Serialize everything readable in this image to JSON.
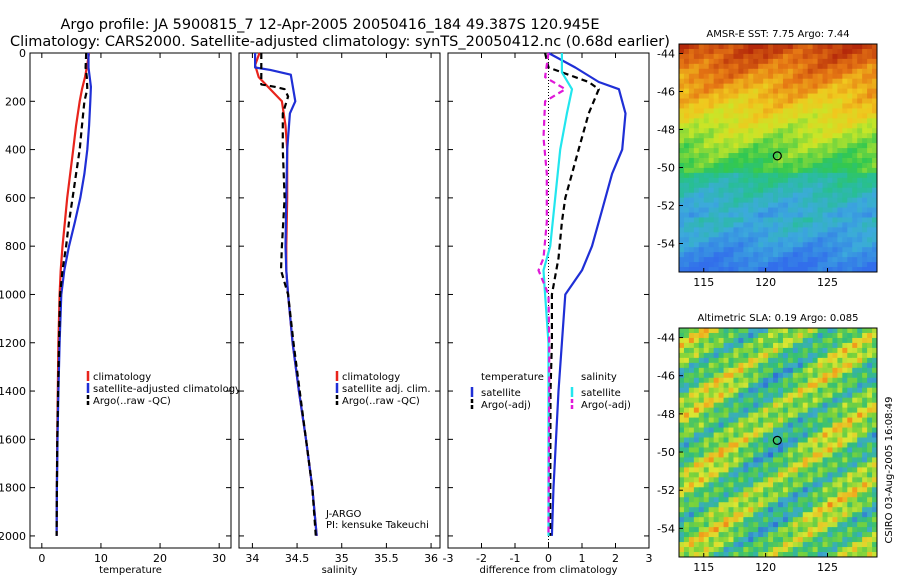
{
  "title_line1": "Argo profile: JA 5900815_7 12-Apr-2005 20050416_184 49.387S 120.945E",
  "title_line2": "Climatology: CARS2000. Satellite-adjusted climatology: synTS_20050412.nc (0.68d earlier)",
  "credit": "CSIRO 03-Aug-2005 16:08:49",
  "colors": {
    "red": "#e8241c",
    "blue": "#1f2fd6",
    "black": "#000000",
    "cyan": "#22e6ee",
    "magenta": "#e019d8"
  },
  "chart_data": [
    {
      "type": "line",
      "xlabel": "temperature",
      "xlim": [
        -2,
        32
      ],
      "ylim": [
        2050,
        0
      ],
      "xticks": [
        0,
        10,
        20,
        30
      ],
      "yticks": [
        0,
        200,
        400,
        600,
        800,
        1000,
        1200,
        1400,
        1600,
        1800,
        2000
      ],
      "legend": "lower-right",
      "series": [
        {
          "name": "climatology",
          "color": "#e8241c",
          "dash": false,
          "points": [
            [
              8,
              0
            ],
            [
              7.6,
              60
            ],
            [
              7.3,
              100
            ],
            [
              6.8,
              150
            ],
            [
              6.4,
              200
            ],
            [
              5.8,
              300
            ],
            [
              5.3,
              400
            ],
            [
              4.8,
              500
            ],
            [
              4.3,
              600
            ],
            [
              3.9,
              700
            ],
            [
              3.5,
              800
            ],
            [
              3.2,
              900
            ],
            [
              3.0,
              1000
            ],
            [
              2.8,
              1200
            ],
            [
              2.7,
              1400
            ],
            [
              2.6,
              1600
            ],
            [
              2.55,
              1800
            ],
            [
              2.5,
              2000
            ]
          ]
        },
        {
          "name": "satellite-adjusted climatology",
          "color": "#1f2fd6",
          "dash": false,
          "points": [
            [
              7.9,
              0
            ],
            [
              7.9,
              60
            ],
            [
              8.1,
              100
            ],
            [
              8.3,
              140
            ],
            [
              8.2,
              200
            ],
            [
              8.0,
              300
            ],
            [
              7.7,
              400
            ],
            [
              7.2,
              500
            ],
            [
              6.5,
              600
            ],
            [
              5.6,
              700
            ],
            [
              4.6,
              800
            ],
            [
              3.8,
              900
            ],
            [
              3.3,
              1000
            ],
            [
              3.0,
              1200
            ],
            [
              2.8,
              1400
            ],
            [
              2.65,
              1600
            ],
            [
              2.55,
              1800
            ],
            [
              2.5,
              2000
            ]
          ]
        },
        {
          "name": "Argo(..raw -QC)",
          "color": "#000000",
          "dash": true,
          "points": [
            [
              7.5,
              0
            ],
            [
              7.4,
              60
            ],
            [
              7.6,
              100
            ],
            [
              7.7,
              150
            ],
            [
              7.2,
              200
            ],
            [
              6.8,
              300
            ],
            [
              6.4,
              400
            ],
            [
              5.8,
              500
            ],
            [
              5.2,
              600
            ],
            [
              4.6,
              700
            ],
            [
              4.1,
              800
            ],
            [
              3.5,
              900
            ],
            [
              3.1,
              1000
            ],
            [
              2.9,
              1200
            ],
            [
              2.75,
              1400
            ],
            [
              2.62,
              1600
            ],
            [
              2.55,
              1800
            ],
            [
              2.5,
              2000
            ]
          ]
        }
      ]
    },
    {
      "type": "line",
      "xlabel": "salinity",
      "xlim": [
        33.85,
        36.1
      ],
      "ylim": [
        2050,
        0
      ],
      "xticks": [
        34,
        34.5,
        35,
        35.5,
        36
      ],
      "yticks": [
        0,
        200,
        400,
        600,
        800,
        1000,
        1200,
        1400,
        1600,
        1800,
        2000
      ],
      "legend": "lower-right",
      "series": [
        {
          "name": "climatology",
          "color": "#e8241c",
          "dash": false,
          "points": [
            [
              34.08,
              0
            ],
            [
              34.03,
              50
            ],
            [
              34.07,
              100
            ],
            [
              34.2,
              150
            ],
            [
              34.33,
              200
            ],
            [
              34.37,
              300
            ],
            [
              34.39,
              400
            ],
            [
              34.39,
              600
            ],
            [
              34.38,
              800
            ],
            [
              34.38,
              900
            ],
            [
              34.4,
              1000
            ],
            [
              34.45,
              1200
            ],
            [
              34.52,
              1400
            ],
            [
              34.6,
              1600
            ],
            [
              34.67,
              1800
            ],
            [
              34.72,
              2000
            ]
          ]
        },
        {
          "name": "satellite adj. clim.",
          "color": "#1f2fd6",
          "dash": false,
          "points": [
            [
              34.03,
              0
            ],
            [
              34.03,
              60
            ],
            [
              34.2,
              70
            ],
            [
              34.43,
              90
            ],
            [
              34.48,
              200
            ],
            [
              34.42,
              250
            ],
            [
              34.39,
              400
            ],
            [
              34.38,
              600
            ],
            [
              34.37,
              800
            ],
            [
              34.38,
              900
            ],
            [
              34.4,
              1000
            ],
            [
              34.45,
              1200
            ],
            [
              34.52,
              1400
            ],
            [
              34.6,
              1600
            ],
            [
              34.67,
              1800
            ],
            [
              34.72,
              2000
            ]
          ]
        },
        {
          "name": "Argo(..raw -QC)",
          "color": "#000000",
          "dash": true,
          "points": [
            [
              34.1,
              0
            ],
            [
              34.1,
              130
            ],
            [
              34.25,
              140
            ],
            [
              34.36,
              150
            ],
            [
              34.4,
              180
            ],
            [
              34.34,
              250
            ],
            [
              34.34,
              400
            ],
            [
              34.36,
              600
            ],
            [
              34.33,
              800
            ],
            [
              34.32,
              900
            ],
            [
              34.4,
              1000
            ],
            [
              34.46,
              1200
            ],
            [
              34.53,
              1400
            ],
            [
              34.6,
              1600
            ],
            [
              34.67,
              1800
            ],
            [
              34.71,
              2000
            ]
          ]
        }
      ],
      "annotation": [
        "J-ARGO",
        "PI: kensuke Takeuchi"
      ]
    },
    {
      "type": "line",
      "xlabel": "difference from climatology",
      "xlim": [
        -3,
        3
      ],
      "ylim": [
        2050,
        0
      ],
      "xticks": [
        -3,
        -2,
        -1,
        0,
        1,
        2,
        3
      ],
      "yticks": [
        0,
        200,
        400,
        600,
        800,
        1000,
        1200,
        1400,
        1600,
        1800,
        2000
      ],
      "legend": "lower-right",
      "legend_groups": [
        "temperature",
        "salinity"
      ],
      "series": [
        {
          "name": "satellite",
          "group": "temperature",
          "color": "#1f2fd6",
          "dash": false,
          "points": [
            [
              0,
              0
            ],
            [
              0.8,
              60
            ],
            [
              1.5,
              120
            ],
            [
              2.1,
              150
            ],
            [
              2.3,
              250
            ],
            [
              2.2,
              400
            ],
            [
              1.9,
              500
            ],
            [
              1.6,
              650
            ],
            [
              1.3,
              800
            ],
            [
              1.0,
              900
            ],
            [
              0.5,
              1000
            ],
            [
              0.4,
              1200
            ],
            [
              0.3,
              1400
            ],
            [
              0.15,
              1800
            ],
            [
              0.1,
              2000
            ]
          ]
        },
        {
          "name": "Argo(-adj)",
          "group": "temperature",
          "color": "#000000",
          "dash": true,
          "points": [
            [
              -0.1,
              0
            ],
            [
              0,
              60
            ],
            [
              1.2,
              120
            ],
            [
              1.5,
              150
            ],
            [
              1.2,
              250
            ],
            [
              0.9,
              400
            ],
            [
              0.7,
              500
            ],
            [
              0.5,
              600
            ],
            [
              0.4,
              700
            ],
            [
              0.3,
              850
            ],
            [
              0.1,
              1000
            ],
            [
              0.1,
              1200
            ],
            [
              0.06,
              1400
            ],
            [
              0.05,
              2000
            ]
          ]
        },
        {
          "name": "satellite",
          "group": "salinity",
          "color": "#22e6ee",
          "dash": false,
          "points": [
            [
              0.4,
              0
            ],
            [
              0.4,
              80
            ],
            [
              0.7,
              150
            ],
            [
              0.55,
              250
            ],
            [
              0.35,
              400
            ],
            [
              0.2,
              600
            ],
            [
              0.05,
              800
            ],
            [
              -0.15,
              900
            ],
            [
              -0.1,
              1000
            ],
            [
              0,
              1200
            ],
            [
              0,
              1400
            ],
            [
              0,
              2000
            ]
          ]
        },
        {
          "name": "Argo(-adj)",
          "group": "salinity",
          "color": "#e019d8",
          "dash": true,
          "points": [
            [
              0,
              0
            ],
            [
              -0.1,
              100
            ],
            [
              0.5,
              150
            ],
            [
              -0.1,
              200
            ],
            [
              -0.15,
              350
            ],
            [
              -0.05,
              500
            ],
            [
              -0.05,
              700
            ],
            [
              -0.15,
              850
            ],
            [
              -0.3,
              900
            ],
            [
              0,
              1000
            ],
            [
              0.02,
              1200
            ],
            [
              0.02,
              1400
            ],
            [
              0,
              2000
            ]
          ]
        }
      ]
    },
    {
      "type": "heatmap",
      "title": "AMSR-E SST: 7.75 Argo: 7.44",
      "xlim": [
        113,
        129
      ],
      "ylim": [
        -55.5,
        -43.5
      ],
      "xticks": [
        115,
        120,
        125
      ],
      "yticks": [
        -44,
        -46,
        -48,
        -50,
        -52,
        -54
      ],
      "marker": [
        120.945,
        -49.387
      ],
      "field": "sst"
    },
    {
      "type": "heatmap",
      "title": "Altimetric SLA: 0.19 Argo: 0.085",
      "xlim": [
        113,
        129
      ],
      "ylim": [
        -55.5,
        -43.5
      ],
      "xticks": [
        115,
        120,
        125
      ],
      "yticks": [
        -44,
        -46,
        -48,
        -50,
        -52,
        -54
      ],
      "marker": [
        120.945,
        -49.387
      ],
      "field": "sla"
    }
  ]
}
